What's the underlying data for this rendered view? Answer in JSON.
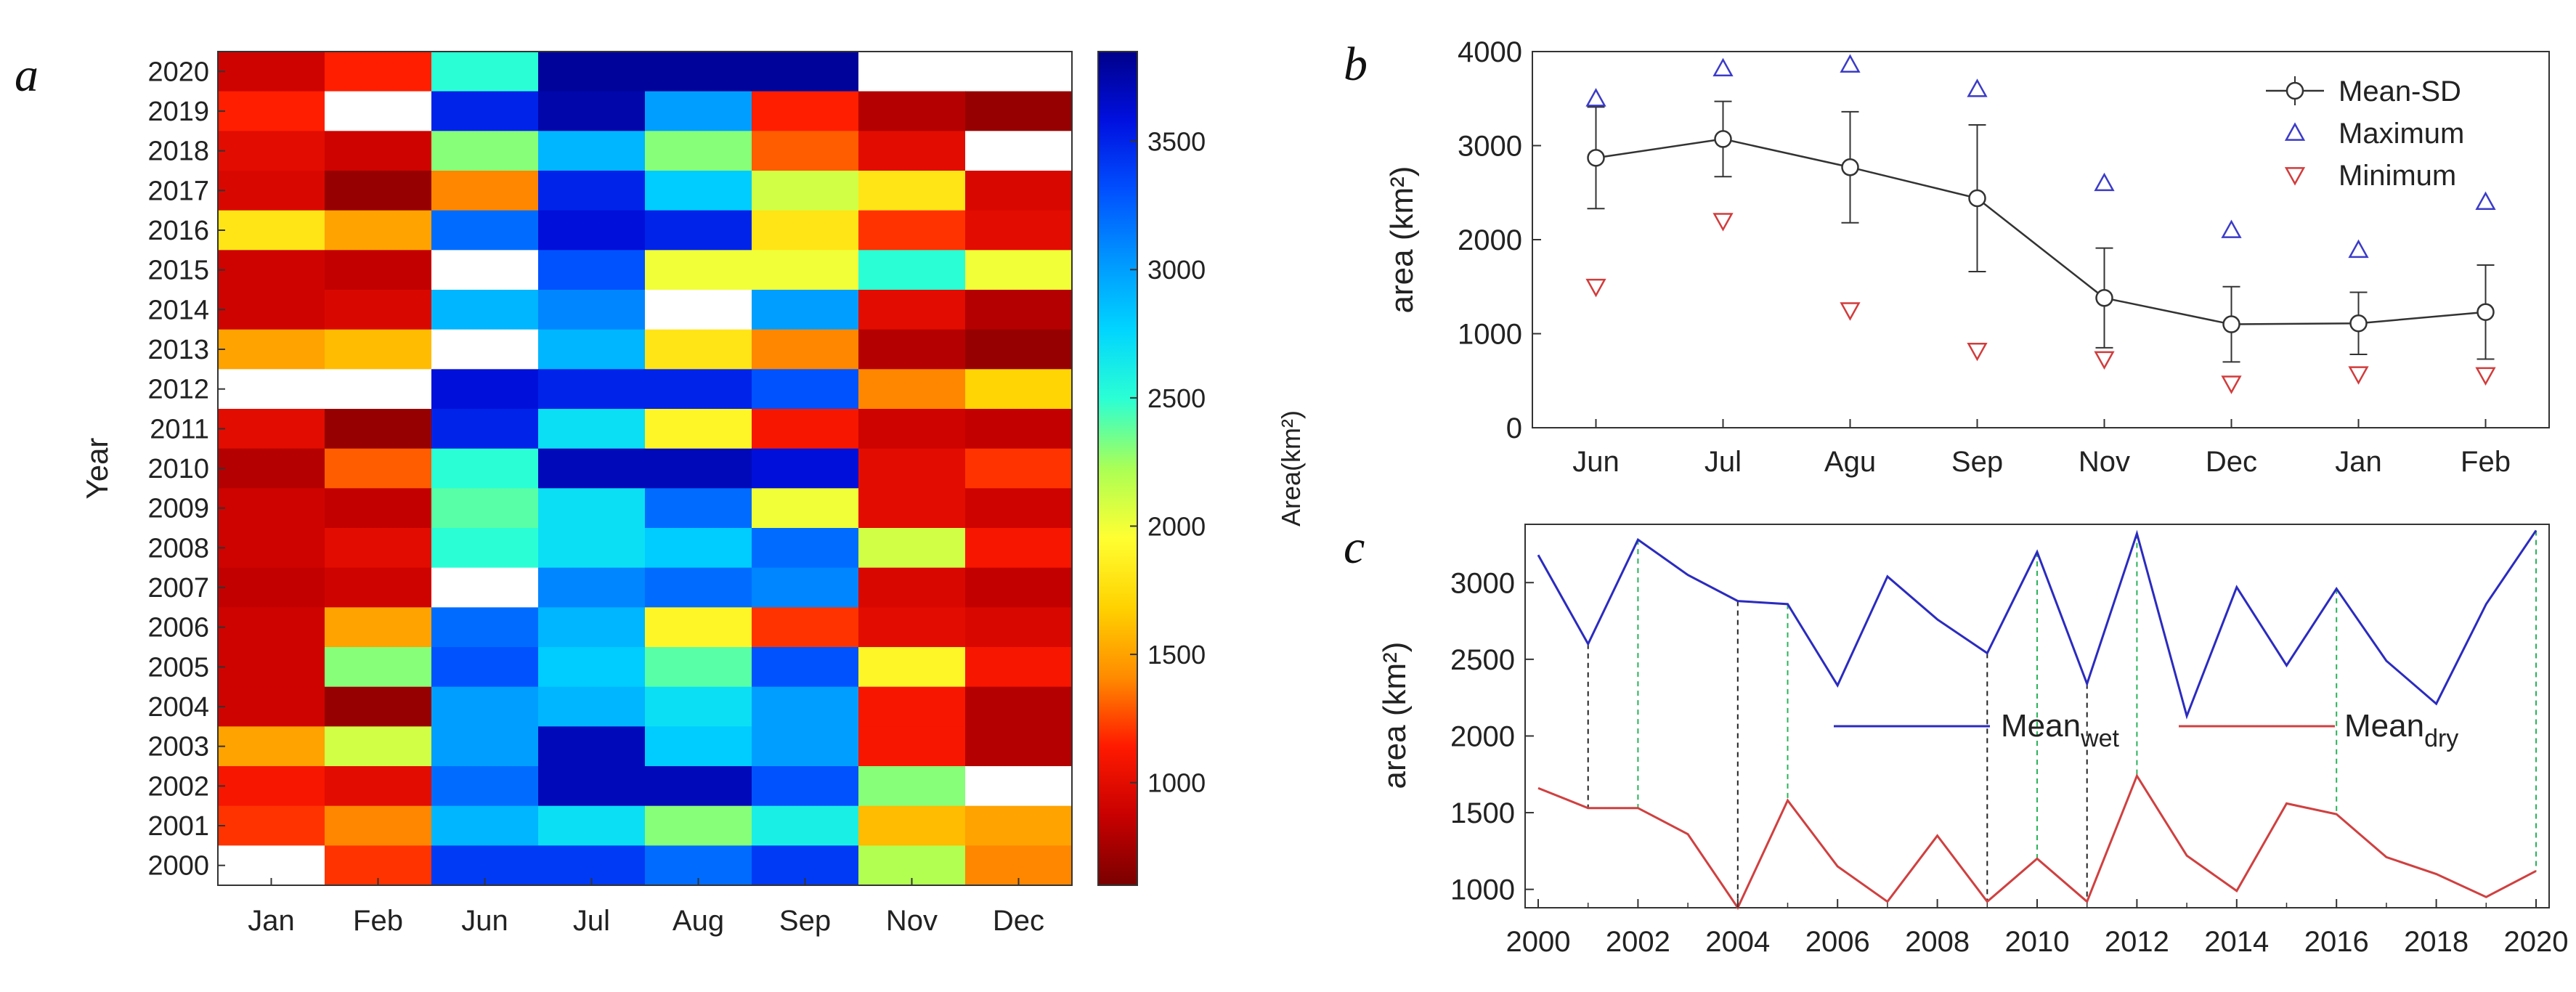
{
  "chart_data": [
    {
      "type": "heatmap",
      "panel": "a",
      "ylabel": "Year",
      "colorbar_label": "Area(km²)",
      "colorbar_ticks": [
        1000,
        1500,
        2000,
        2500,
        3000,
        3500
      ],
      "color_range": [
        600,
        3850
      ],
      "columns": [
        "Jan",
        "Feb",
        "Jun",
        "Jul",
        "Aug",
        "Sep",
        "Nov",
        "Dec"
      ],
      "rows": [
        "2020",
        "2019",
        "2018",
        "2017",
        "2016",
        "2015",
        "2014",
        "2013",
        "2012",
        "2011",
        "2010",
        "2009",
        "2008",
        "2007",
        "2006",
        "2005",
        "2004",
        "2003",
        "2002",
        "2001",
        "2000"
      ],
      "missing_value_note": "null = white (no data)",
      "values": [
        [
          900,
          1150,
          2500,
          3800,
          3800,
          3800,
          null,
          null
        ],
        [
          1150,
          null,
          3500,
          3750,
          3000,
          1150,
          800,
          700
        ],
        [
          1000,
          900,
          2300,
          2900,
          2300,
          1300,
          1000,
          null
        ],
        [
          950,
          700,
          1400,
          3500,
          2800,
          2100,
          1800,
          950
        ],
        [
          1800,
          1500,
          3200,
          3600,
          3500,
          1800,
          1200,
          1000
        ],
        [
          900,
          850,
          null,
          3300,
          2000,
          2000,
          2500,
          2000
        ],
        [
          900,
          950,
          2900,
          3100,
          null,
          3000,
          1000,
          800
        ],
        [
          1500,
          1600,
          null,
          2900,
          1800,
          1400,
          800,
          700
        ],
        [
          null,
          null,
          3600,
          3500,
          3500,
          3300,
          1400,
          1700
        ],
        [
          1000,
          700,
          3500,
          2700,
          1900,
          1100,
          900,
          850
        ],
        [
          800,
          1300,
          2500,
          3700,
          3700,
          3600,
          1000,
          1200
        ],
        [
          900,
          850,
          2400,
          2700,
          3200,
          2000,
          1000,
          900
        ],
        [
          900,
          1000,
          2500,
          2700,
          2800,
          3200,
          2100,
          1100
        ],
        [
          850,
          900,
          null,
          3100,
          3200,
          3100,
          950,
          850
        ],
        [
          900,
          1500,
          3200,
          2900,
          1900,
          1200,
          1000,
          950
        ],
        [
          900,
          2300,
          3300,
          2800,
          2400,
          3300,
          1900,
          1100
        ],
        [
          900,
          700,
          3000,
          2900,
          2700,
          3000,
          1100,
          800
        ],
        [
          1500,
          2100,
          3000,
          3700,
          2800,
          3000,
          1100,
          800
        ],
        [
          1100,
          1000,
          3200,
          3700,
          3700,
          3300,
          2300,
          null
        ],
        [
          1200,
          1400,
          2900,
          2700,
          2300,
          2600,
          1600,
          1500
        ],
        [
          null,
          1200,
          3400,
          3400,
          3200,
          3400,
          2200,
          1400
        ]
      ]
    },
    {
      "type": "line",
      "panel": "b",
      "ylabel": "area (km²)",
      "categories": [
        "Jun",
        "Jul",
        "Agu",
        "Sep",
        "Nov",
        "Dec",
        "Jan",
        "Feb"
      ],
      "ylim": [
        0,
        4000
      ],
      "yticks": [
        0,
        1000,
        2000,
        3000,
        4000
      ],
      "series": [
        {
          "name": "Mean-SD",
          "values": [
            2870,
            3070,
            2770,
            2440,
            1380,
            1100,
            1110,
            1230
          ],
          "sd": [
            540,
            400,
            590,
            780,
            530,
            400,
            330,
            500
          ]
        },
        {
          "name": "Maximum",
          "values": [
            3500,
            3820,
            3860,
            3600,
            2600,
            2100,
            1890,
            2400
          ]
        },
        {
          "name": "Minimum",
          "values": [
            1500,
            2200,
            1250,
            820,
            730,
            470,
            570,
            560
          ]
        }
      ],
      "legend_position": "top-right",
      "colors": {
        "mean": "#333333",
        "max": "#3b3bc8",
        "min": "#d23c3c"
      }
    },
    {
      "type": "line",
      "panel": "c",
      "ylabel": "area (km²)",
      "xlim": [
        2000,
        2020
      ],
      "ylim": [
        880,
        3380
      ],
      "xticks": [
        2000,
        2002,
        2004,
        2006,
        2008,
        2010,
        2012,
        2014,
        2016,
        2018,
        2020
      ],
      "yticks": [
        1000,
        1500,
        2000,
        2500,
        3000
      ],
      "x": [
        2000,
        2001,
        2002,
        2003,
        2004,
        2005,
        2006,
        2007,
        2008,
        2009,
        2010,
        2011,
        2012,
        2013,
        2014,
        2015,
        2016,
        2017,
        2018,
        2019,
        2020
      ],
      "series": [
        {
          "name": "Mean",
          "subscript": "wet",
          "color": "#2b2bc0",
          "values": [
            3180,
            2600,
            3280,
            3050,
            2880,
            2860,
            2330,
            3040,
            2760,
            2540,
            3200,
            2340,
            3320,
            2130,
            2970,
            2460,
            2960,
            2490,
            2210,
            2860,
            3340
          ]
        },
        {
          "name": "Mean",
          "subscript": "dry",
          "color": "#d04040",
          "values": [
            1660,
            1530,
            1530,
            1360,
            880,
            1580,
            1150,
            920,
            1350,
            920,
            1200,
            920,
            1740,
            1220,
            990,
            1560,
            1490,
            1210,
            1100,
            950,
            1120
          ]
        }
      ],
      "connector_years_black": [
        2001,
        2004,
        2009,
        2011
      ],
      "connector_years_green": [
        2002,
        2005,
        2010,
        2012,
        2016,
        2020
      ],
      "legend_position": "center"
    }
  ],
  "panel_labels": {
    "a": "a",
    "b": "b",
    "c": "c"
  },
  "colormap": [
    "#7a0000",
    "#c80000",
    "#ff1a00",
    "#ff8c00",
    "#ffd200",
    "#ffff32",
    "#aaff55",
    "#2bffd4",
    "#00d5ff",
    "#0096ff",
    "#0050ff",
    "#0010e0",
    "#00008a"
  ]
}
